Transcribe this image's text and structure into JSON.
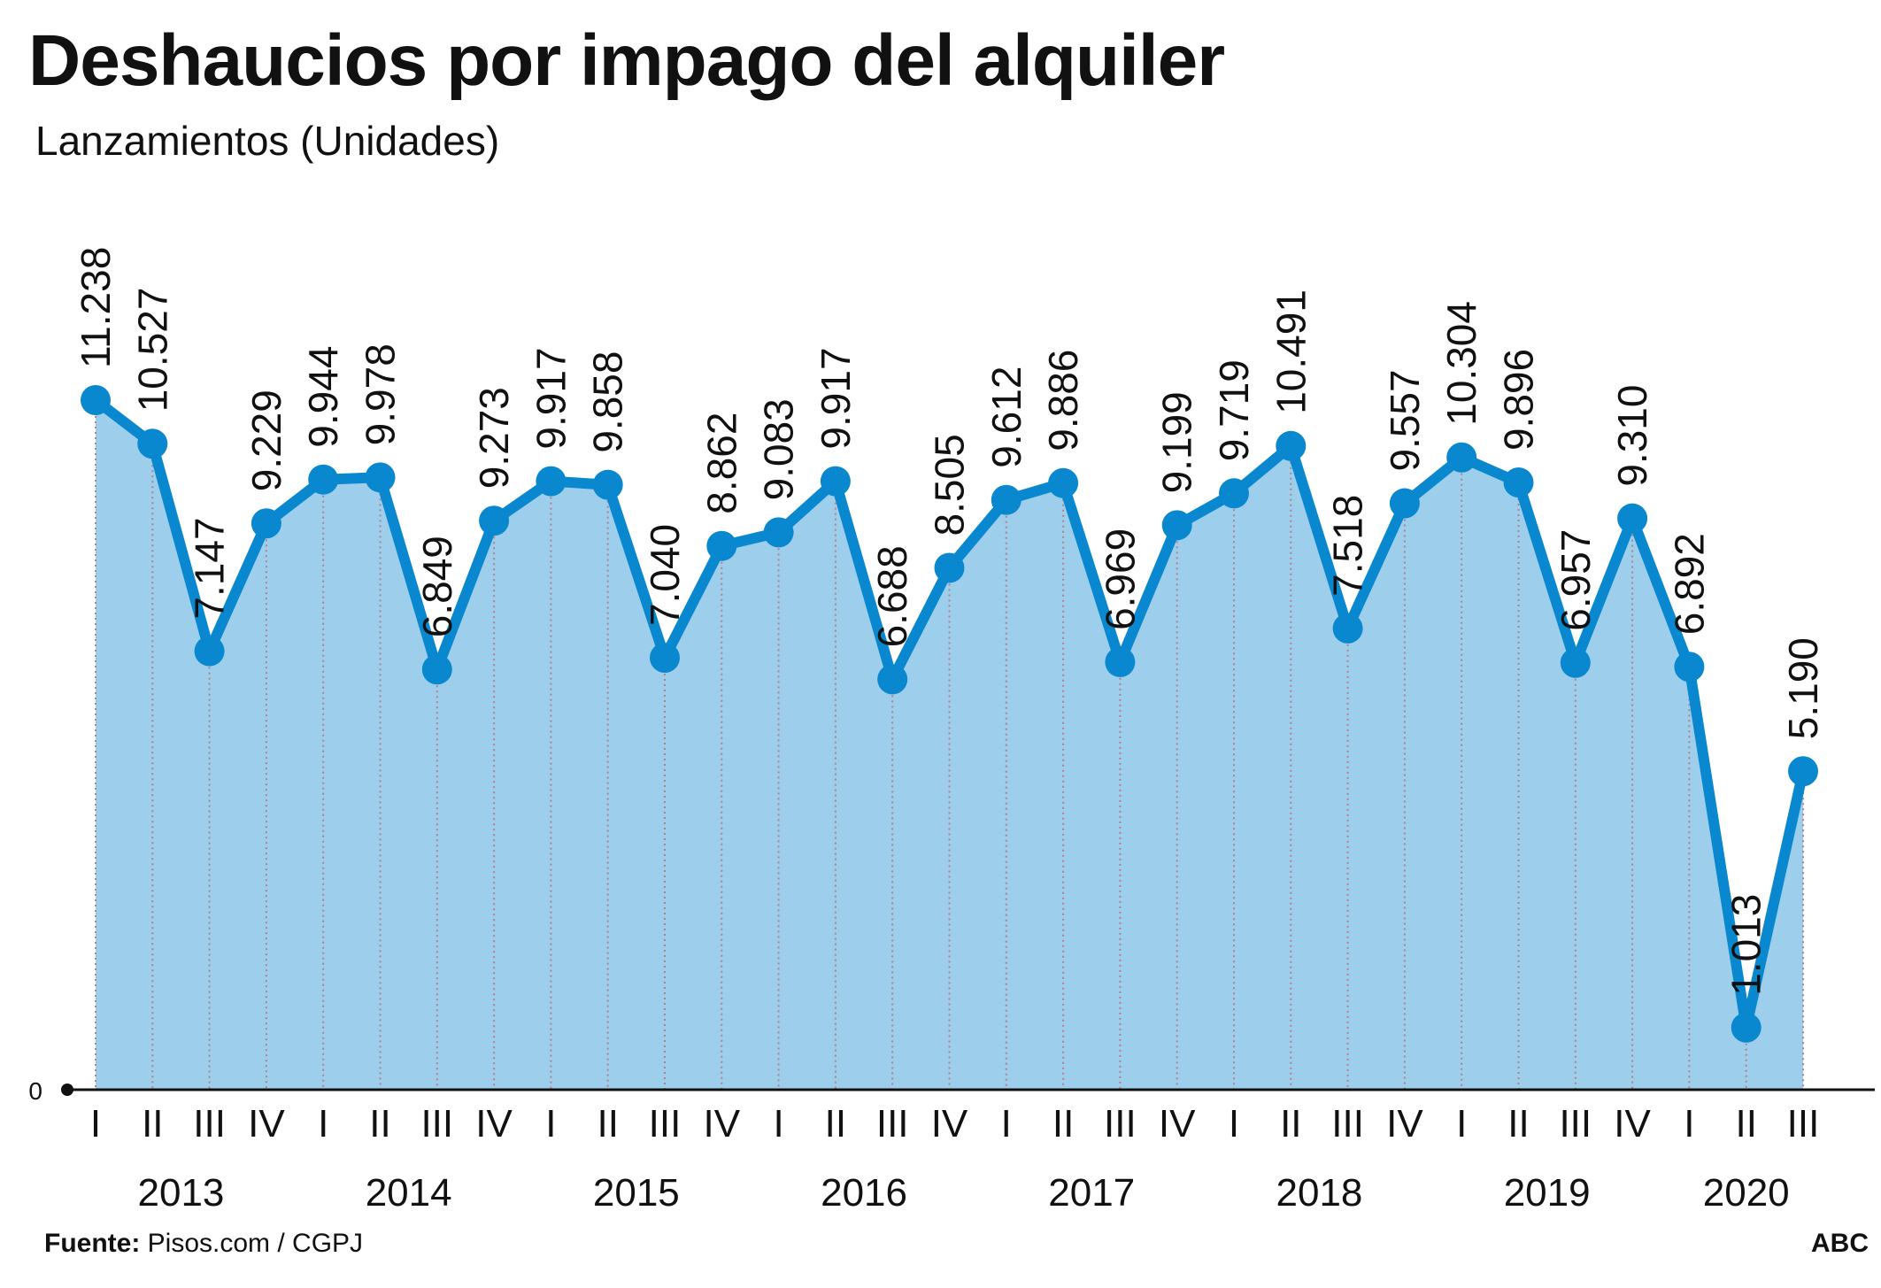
{
  "title": "Deshaucios por impago del alquiler",
  "subtitle": "Lanzamientos (Unidades)",
  "source_label": "Fuente:",
  "source_text": " Pisos.com / CGPJ",
  "brand": "ABC",
  "colors": {
    "line": "#0a88cf",
    "fill": "#9dcfec",
    "grid": "#b37f8a",
    "axis": "#111111",
    "text": "#111111"
  },
  "chart_data": {
    "type": "area",
    "title": "Deshaucios por impago del alquiler",
    "ylabel": "Lanzamientos (Unidades)",
    "ylim": [
      0,
      11238
    ],
    "y_ticks": [
      "0"
    ],
    "grid": "vertical dotted",
    "quarters": [
      "I",
      "II",
      "III",
      "IV",
      "I",
      "II",
      "III",
      "IV",
      "I",
      "II",
      "III",
      "IV",
      "I",
      "II",
      "III",
      "IV",
      "I",
      "II",
      "III",
      "IV",
      "I",
      "II",
      "III",
      "IV",
      "I",
      "II",
      "III",
      "IV",
      "I",
      "II",
      "III"
    ],
    "years": [
      {
        "label": "2013",
        "center": 1.5
      },
      {
        "label": "2014",
        "center": 5.5
      },
      {
        "label": "2015",
        "center": 9.5
      },
      {
        "label": "2016",
        "center": 13.5
      },
      {
        "label": "2017",
        "center": 17.5
      },
      {
        "label": "2018",
        "center": 21.5
      },
      {
        "label": "2019",
        "center": 25.5
      },
      {
        "label": "2020",
        "center": 29
      }
    ],
    "values": [
      11238,
      10527,
      7147,
      9229,
      9944,
      9978,
      6849,
      9273,
      9917,
      9858,
      7040,
      8862,
      9083,
      9917,
      6688,
      8505,
      9612,
      9886,
      6969,
      9199,
      9719,
      10491,
      7518,
      9557,
      10304,
      9896,
      6957,
      9310,
      6892,
      1013,
      5190
    ],
    "labels": [
      "11.238",
      "10.527",
      "7.147",
      "9.229",
      "9.944",
      "9.978",
      "6.849",
      "9.273",
      "9.917",
      "9.858",
      "7.040",
      "8.862",
      "9.083",
      "9.917",
      "6.688",
      "8.505",
      "9.612",
      "9.886",
      "6.969",
      "9.199",
      "9.719",
      "10.491",
      "7.518",
      "9.557",
      "10.304",
      "9.896",
      "6.957",
      "9.310",
      "6.892",
      "1.013",
      "5.190"
    ]
  }
}
